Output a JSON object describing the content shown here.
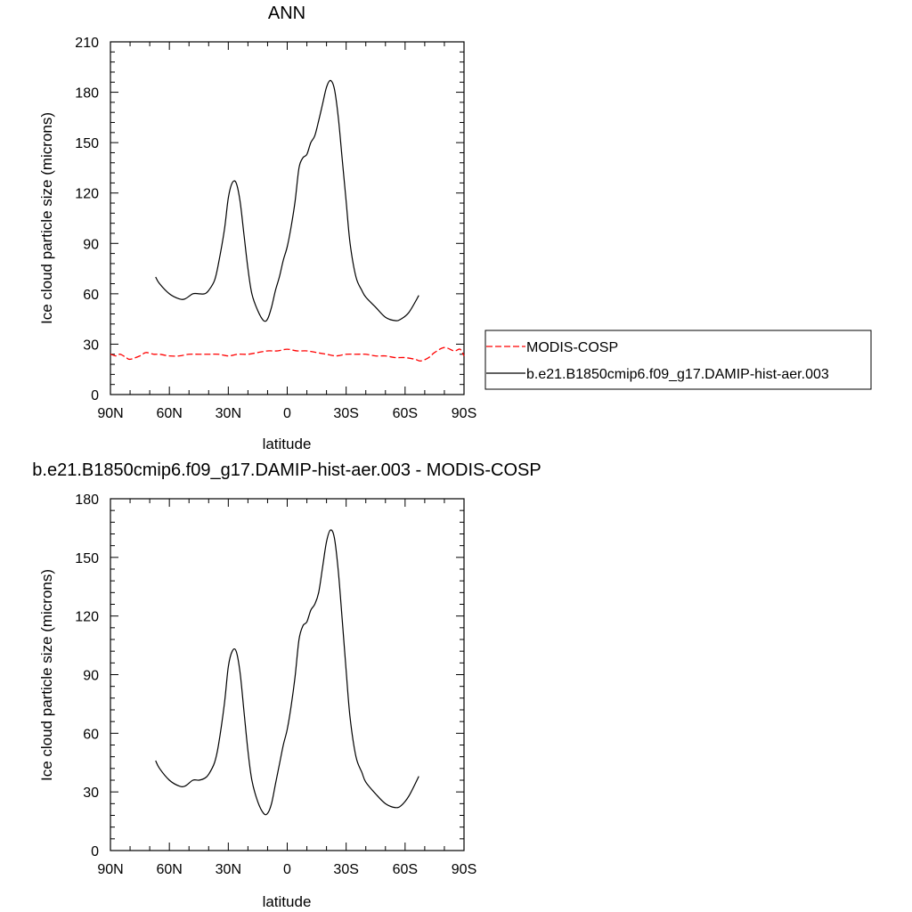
{
  "chart_data": [
    {
      "type": "line",
      "title": "ANN",
      "xlabel": "latitude",
      "ylabel": "Ice cloud particle size (microns)",
      "xlim": [
        90,
        -90
      ],
      "ylim": [
        0,
        210
      ],
      "x_ticks": [
        90,
        60,
        30,
        0,
        -30,
        -60,
        -90
      ],
      "x_tick_labels": [
        "90N",
        "60N",
        "30N",
        "0",
        "30S",
        "60S",
        "90S"
      ],
      "y_ticks": [
        0,
        30,
        60,
        90,
        120,
        150,
        180,
        210
      ],
      "y_tick_labels": [
        "0",
        "30",
        "60",
        "90",
        "120",
        "150",
        "180",
        "210"
      ],
      "grid": false,
      "legend_position": "right",
      "series": [
        {
          "name": "MODIS-COSP",
          "color": "#ff0000",
          "dash": "dashed",
          "x": [
            90,
            87,
            85,
            82,
            80,
            75,
            72,
            68,
            65,
            60,
            55,
            50,
            45,
            40,
            35,
            30,
            25,
            20,
            15,
            10,
            5,
            0,
            -5,
            -10,
            -15,
            -20,
            -25,
            -30,
            -35,
            -40,
            -45,
            -50,
            -55,
            -60,
            -65,
            -68,
            -72,
            -75,
            -80,
            -85,
            -88,
            -90
          ],
          "values": [
            24,
            23,
            24,
            22,
            21,
            23,
            25,
            24,
            24,
            23,
            23,
            24,
            24,
            24,
            24,
            23,
            24,
            24,
            25,
            26,
            26,
            27,
            26,
            26,
            25,
            24,
            23,
            24,
            24,
            24,
            23,
            23,
            22,
            22,
            21,
            20,
            22,
            25,
            28,
            26,
            27,
            23
          ]
        },
        {
          "name": "b.e21.B1850cmip6.f09_g17.DAMIP-hist-aer.003",
          "color": "#000000",
          "dash": "solid",
          "x": [
            67,
            65,
            60,
            55,
            52,
            48,
            45,
            42,
            40,
            37,
            35,
            32,
            30,
            28,
            26,
            24,
            22,
            20,
            18,
            15,
            12,
            10,
            8,
            6,
            4,
            2,
            0,
            -2,
            -4,
            -6,
            -8,
            -10,
            -12,
            -14,
            -16,
            -18,
            -20,
            -22,
            -24,
            -26,
            -28,
            -30,
            -32,
            -35,
            -38,
            -40,
            -45,
            -50,
            -55,
            -58,
            -62,
            -67
          ],
          "values": [
            70,
            66,
            60,
            57,
            57,
            60,
            60,
            60,
            62,
            68,
            78,
            98,
            117,
            126,
            126,
            115,
            95,
            75,
            60,
            50,
            44,
            45,
            52,
            62,
            70,
            80,
            88,
            100,
            115,
            135,
            141,
            143,
            150,
            154,
            163,
            173,
            183,
            187,
            182,
            165,
            140,
            115,
            90,
            70,
            62,
            58,
            52,
            46,
            44,
            45,
            49,
            59
          ]
        }
      ]
    },
    {
      "type": "line",
      "title": "b.e21.B1850cmip6.f09_g17.DAMIP-hist-aer.003 - MODIS-COSP",
      "xlabel": "latitude",
      "ylabel": "Ice cloud particle size (microns)",
      "xlim": [
        90,
        -90
      ],
      "ylim": [
        0,
        180
      ],
      "x_ticks": [
        90,
        60,
        30,
        0,
        -30,
        -60,
        -90
      ],
      "x_tick_labels": [
        "90N",
        "60N",
        "30N",
        "0",
        "30S",
        "60S",
        "90S"
      ],
      "y_ticks": [
        0,
        30,
        60,
        90,
        120,
        150,
        180
      ],
      "y_tick_labels": [
        "0",
        "30",
        "60",
        "90",
        "120",
        "150",
        "180"
      ],
      "grid": false,
      "series": [
        {
          "color": "#000000",
          "dash": "solid",
          "x": [
            67,
            65,
            60,
            55,
            52,
            48,
            45,
            42,
            40,
            37,
            35,
            32,
            30,
            28,
            26,
            24,
            22,
            20,
            18,
            15,
            12,
            10,
            8,
            6,
            4,
            2,
            0,
            -2,
            -4,
            -6,
            -8,
            -10,
            -12,
            -14,
            -16,
            -18,
            -20,
            -22,
            -24,
            -26,
            -28,
            -30,
            -32,
            -35,
            -38,
            -40,
            -45,
            -50,
            -55,
            -58,
            -62,
            -67
          ],
          "values": [
            46,
            42,
            36,
            33,
            33,
            36,
            36,
            37,
            39,
            45,
            54,
            75,
            94,
            102,
            102,
            91,
            71,
            51,
            36,
            25,
            19,
            19,
            24,
            34,
            44,
            54,
            62,
            74,
            89,
            108,
            115,
            117,
            123,
            126,
            132,
            145,
            158,
            164,
            160,
            143,
            118,
            92,
            68,
            48,
            40,
            35,
            29,
            24,
            22,
            23,
            28,
            38
          ]
        }
      ]
    }
  ]
}
